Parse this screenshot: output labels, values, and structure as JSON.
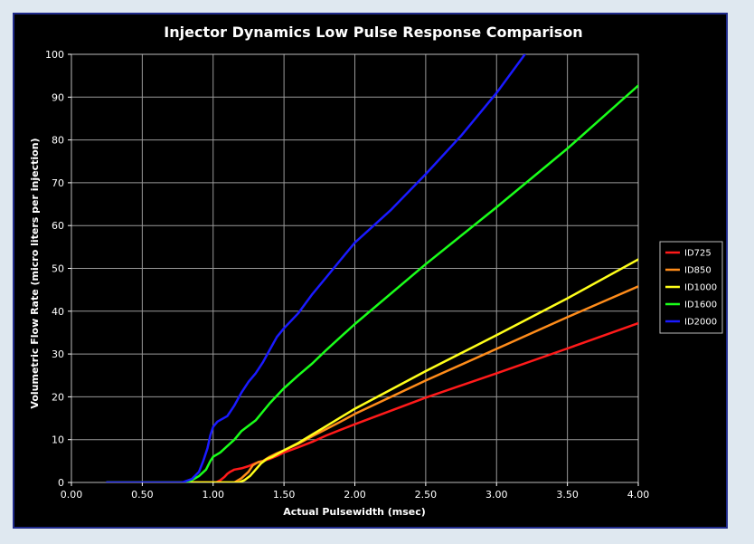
{
  "chart_data": {
    "type": "line",
    "title": "Injector Dynamics Low Pulse Response Comparison",
    "xlabel": "Actual Pulsewidth (msec)",
    "ylabel": "Volumetric Flow Rate (micro liters per injection)",
    "xlim": [
      0,
      4
    ],
    "ylim": [
      0,
      100
    ],
    "xticks": [
      "0.00",
      "0.50",
      "1.00",
      "1.50",
      "2.00",
      "2.50",
      "3.00",
      "3.50",
      "4.00"
    ],
    "yticks": [
      "0",
      "10",
      "20",
      "30",
      "40",
      "50",
      "60",
      "70",
      "80",
      "90",
      "100"
    ],
    "grid": true,
    "legend_position": "right",
    "background": "#000000",
    "series": [
      {
        "name": "ID725",
        "color": "#ff1a1a",
        "points": [
          [
            0.25,
            0
          ],
          [
            1.02,
            0
          ],
          [
            1.05,
            0.5
          ],
          [
            1.08,
            1.3
          ],
          [
            1.1,
            2
          ],
          [
            1.12,
            2.5
          ],
          [
            1.15,
            3
          ],
          [
            1.2,
            3.3
          ],
          [
            1.25,
            3.8
          ],
          [
            1.3,
            4.5
          ],
          [
            1.35,
            5
          ],
          [
            1.4,
            5.5
          ],
          [
            1.45,
            6.2
          ],
          [
            1.5,
            7
          ],
          [
            1.6,
            8.2
          ],
          [
            1.7,
            9.5
          ],
          [
            1.8,
            11
          ],
          [
            1.9,
            12.3
          ],
          [
            2.0,
            13.6
          ],
          [
            2.5,
            19.8
          ],
          [
            3.0,
            25.5
          ],
          [
            3.5,
            31.3
          ],
          [
            4.0,
            37.2
          ]
        ]
      },
      {
        "name": "ID850",
        "color": "#ff8c1a",
        "points": [
          [
            0.25,
            0
          ],
          [
            1.15,
            0
          ],
          [
            1.2,
            1
          ],
          [
            1.25,
            2.5
          ],
          [
            1.28,
            4
          ],
          [
            1.32,
            4.8
          ],
          [
            1.35,
            5
          ],
          [
            1.4,
            6
          ],
          [
            1.45,
            6.8
          ],
          [
            1.5,
            7.5
          ],
          [
            1.6,
            9
          ],
          [
            1.7,
            10.8
          ],
          [
            1.8,
            12.5
          ],
          [
            1.9,
            14.2
          ],
          [
            2.0,
            16
          ],
          [
            2.5,
            23.8
          ],
          [
            3.0,
            31.2
          ],
          [
            3.5,
            38.6
          ],
          [
            4.0,
            45.8
          ]
        ]
      },
      {
        "name": "ID1000",
        "color": "#ffff1a",
        "points": [
          [
            0.25,
            0
          ],
          [
            1.18,
            0
          ],
          [
            1.22,
            0.5
          ],
          [
            1.26,
            1.5
          ],
          [
            1.3,
            3
          ],
          [
            1.34,
            4.5
          ],
          [
            1.38,
            5.5
          ],
          [
            1.42,
            6
          ],
          [
            1.5,
            7.5
          ],
          [
            1.6,
            9.2
          ],
          [
            1.7,
            11.2
          ],
          [
            1.8,
            13.2
          ],
          [
            1.9,
            15.2
          ],
          [
            2.0,
            17.2
          ],
          [
            2.5,
            26
          ],
          [
            3.0,
            34.4
          ],
          [
            3.5,
            43
          ],
          [
            4.0,
            52.1
          ]
        ]
      },
      {
        "name": "ID1600",
        "color": "#1aff1a",
        "points": [
          [
            0.25,
            0
          ],
          [
            0.8,
            0
          ],
          [
            0.85,
            0.5
          ],
          [
            0.9,
            1.5
          ],
          [
            0.95,
            3
          ],
          [
            0.98,
            5
          ],
          [
            1.0,
            6
          ],
          [
            1.05,
            7
          ],
          [
            1.1,
            8.5
          ],
          [
            1.15,
            10
          ],
          [
            1.2,
            12
          ],
          [
            1.3,
            14.5
          ],
          [
            1.4,
            18.5
          ],
          [
            1.5,
            22
          ],
          [
            1.6,
            25
          ],
          [
            1.7,
            27.8
          ],
          [
            1.8,
            31
          ],
          [
            1.9,
            34
          ],
          [
            2.0,
            37
          ],
          [
            2.5,
            51
          ],
          [
            3.0,
            64.3
          ],
          [
            3.5,
            78
          ],
          [
            4.0,
            92.7
          ]
        ]
      },
      {
        "name": "ID2000",
        "color": "#1a1aff",
        "points": [
          [
            0.25,
            0
          ],
          [
            0.78,
            0
          ],
          [
            0.85,
            0.8
          ],
          [
            0.9,
            2.5
          ],
          [
            0.93,
            5
          ],
          [
            0.96,
            8
          ],
          [
            0.98,
            11
          ],
          [
            1.0,
            13
          ],
          [
            1.03,
            14.2
          ],
          [
            1.1,
            15.5
          ],
          [
            1.15,
            18
          ],
          [
            1.2,
            21
          ],
          [
            1.25,
            23.5
          ],
          [
            1.3,
            25.5
          ],
          [
            1.35,
            28
          ],
          [
            1.4,
            31
          ],
          [
            1.45,
            34
          ],
          [
            1.5,
            36
          ],
          [
            1.6,
            39.5
          ],
          [
            1.7,
            44
          ],
          [
            1.8,
            48
          ],
          [
            1.9,
            52
          ],
          [
            2.0,
            56
          ],
          [
            2.25,
            63.5
          ],
          [
            2.5,
            72
          ],
          [
            2.75,
            81
          ],
          [
            3.0,
            91
          ],
          [
            3.2,
            100
          ]
        ]
      }
    ]
  }
}
